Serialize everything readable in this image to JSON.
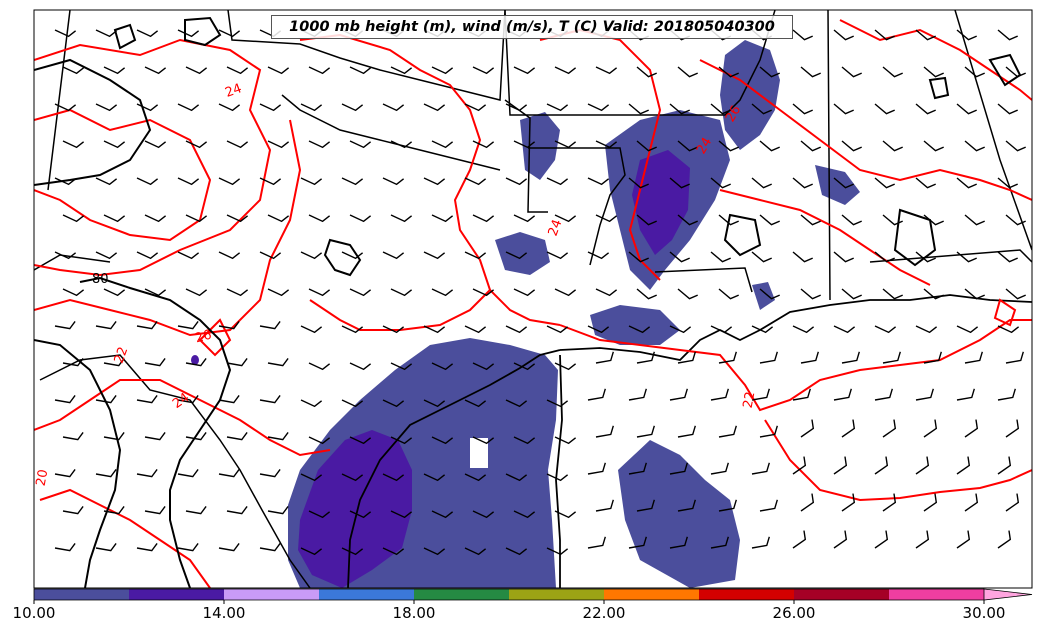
{
  "title": "1000 mb height (m), wind (m/s), T (C) Valid: 201805040300",
  "colorbar": {
    "colors": [
      "#4b4e9c",
      "#4a1aa3",
      "#c99bf7",
      "#3b78d9",
      "#258a43",
      "#9ca315",
      "#ff7700",
      "#d40000",
      "#a50026",
      "#ef3ea1",
      "#ffa5df"
    ],
    "tick_labels": [
      "10.00",
      "14.00",
      "18.00",
      "22.00",
      "26.00",
      "30.00"
    ],
    "extend": "max"
  },
  "contour_labels": {
    "red": [
      "24",
      "26",
      "24",
      "22",
      "24",
      "22",
      "20",
      "24",
      "26"
    ],
    "black": [
      "80"
    ]
  },
  "colors": {
    "temperature_contour": "#ff0000",
    "height_contour": "#000000",
    "border": "#000000",
    "fill_low": "#4b4e9c",
    "fill_mid": "#4a1aa3"
  }
}
